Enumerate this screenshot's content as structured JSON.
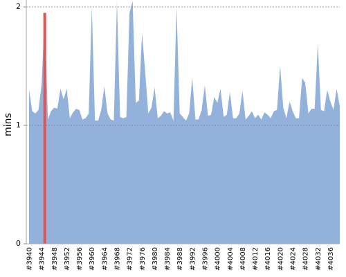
{
  "chart_data": {
    "type": "area",
    "y_label": "mins",
    "categories": [
      "#3940",
      null,
      null,
      null,
      "#3944",
      null,
      null,
      null,
      "#3948",
      null,
      null,
      null,
      "#3952",
      null,
      null,
      null,
      "#3956",
      null,
      null,
      null,
      "#3960",
      null,
      null,
      null,
      "#3964",
      null,
      null,
      null,
      "#3968",
      null,
      null,
      null,
      "#3972",
      null,
      null,
      null,
      "#3976",
      null,
      null,
      null,
      "#3980",
      null,
      null,
      null,
      "#3984",
      null,
      null,
      null,
      "#3988",
      null,
      null,
      null,
      "#3992",
      null,
      null,
      null,
      "#3996",
      null,
      null,
      null,
      "#4000",
      null,
      null,
      null,
      "#4004",
      null,
      null,
      null,
      "#4008",
      null,
      null,
      null,
      "#4012",
      null,
      null,
      null,
      "#4016",
      null,
      null,
      null,
      "#4020",
      null,
      null,
      null,
      "#4024",
      null,
      null,
      null,
      "#4028",
      null,
      null,
      null,
      "#4032",
      null,
      null,
      null,
      "#4036",
      null,
      null,
      null
    ],
    "values": [
      1.3,
      1.12,
      1.1,
      1.13,
      1.35,
      1.95,
      1.05,
      1.12,
      1.15,
      1.14,
      1.31,
      1.22,
      1.31,
      1.06,
      1.11,
      1.14,
      1.13,
      1.05,
      1.06,
      1.1,
      2.0,
      1.04,
      1.04,
      1.13,
      1.33,
      1.1,
      1.05,
      1.04,
      2.05,
      1.07,
      1.06,
      1.07,
      1.95,
      2.05,
      1.19,
      1.21,
      1.78,
      1.45,
      1.1,
      1.15,
      1.32,
      1.06,
      1.08,
      1.12,
      1.1,
      1.11,
      1.04,
      2.0,
      1.1,
      1.07,
      1.04,
      1.1,
      1.4,
      1.05,
      1.05,
      1.13,
      1.34,
      1.08,
      1.09,
      1.24,
      1.19,
      1.31,
      1.07,
      1.09,
      1.28,
      1.06,
      1.06,
      1.1,
      1.29,
      1.05,
      1.08,
      1.12,
      1.06,
      1.09,
      1.05,
      1.11,
      1.09,
      1.06,
      1.12,
      1.13,
      1.5,
      1.15,
      1.06,
      1.2,
      1.12,
      1.06,
      1.06,
      1.4,
      1.36,
      1.1,
      1.14,
      1.14,
      1.69,
      1.13,
      1.12,
      1.3,
      1.2,
      1.13,
      1.31,
      1.16
    ],
    "color": "#92b2dc",
    "highlight_index": 5,
    "highlight_color": "#e05555",
    "ylim": [
      0,
      2.05
    ],
    "yticks": [
      0,
      1,
      2
    ],
    "grid": true
  }
}
